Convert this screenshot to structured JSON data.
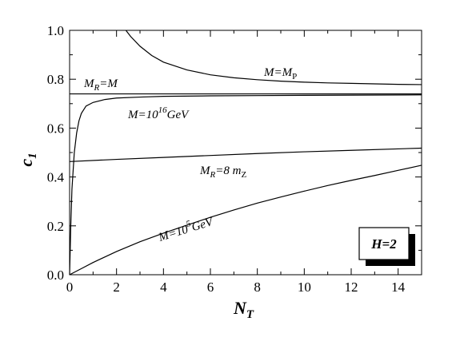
{
  "chart_data": {
    "type": "line",
    "title": "",
    "xlabel": "N",
    "xlabel_sub": "T",
    "ylabel": "c",
    "ylabel_sub": "1",
    "xlim": [
      0,
      15
    ],
    "ylim": [
      0,
      1.0
    ],
    "x_ticks": [
      0,
      2,
      4,
      6,
      8,
      10,
      12,
      14
    ],
    "x_tick_labels": [
      "0",
      "2",
      "4",
      "6",
      "8",
      "10",
      "12",
      "14"
    ],
    "y_ticks": [
      0,
      0.2,
      0.4,
      0.6,
      0.8,
      1.0
    ],
    "y_tick_labels": [
      "0.0",
      "0.2",
      "0.4",
      "0.6",
      "0.8",
      "1.0"
    ],
    "grid": false,
    "annotation_box": "H=2",
    "series": [
      {
        "label": "M=M",
        "label_sub": "P",
        "x": [
          2.4,
          2.6,
          3,
          3.5,
          4,
          5,
          6,
          7,
          8,
          9,
          10,
          11,
          12,
          13,
          14,
          15
        ],
        "y": [
          1.0,
          0.975,
          0.935,
          0.897,
          0.87,
          0.838,
          0.818,
          0.806,
          0.798,
          0.792,
          0.788,
          0.785,
          0.783,
          0.781,
          0.779,
          0.778
        ]
      },
      {
        "label": "M",
        "label_sub": "R",
        "label_tail": "=M",
        "x": [
          0,
          15
        ],
        "y": [
          0.74,
          0.74
        ]
      },
      {
        "label": "M=10",
        "label_sup": "16",
        "label_tail": "GeV",
        "x": [
          0,
          0.05,
          0.1,
          0.2,
          0.3,
          0.4,
          0.5,
          0.7,
          1.0,
          1.5,
          2,
          3,
          4,
          6,
          8,
          10,
          15
        ],
        "y": [
          0,
          0.2,
          0.35,
          0.5,
          0.58,
          0.63,
          0.66,
          0.69,
          0.705,
          0.717,
          0.723,
          0.727,
          0.73,
          0.732,
          0.733,
          0.734,
          0.736
        ]
      },
      {
        "label": "M",
        "label_sub": "R",
        "label_tail": "=8 m",
        "label_sub2": "Z",
        "x": [
          0,
          2,
          4,
          6,
          8,
          10,
          12,
          15
        ],
        "y": [
          0.463,
          0.472,
          0.48,
          0.488,
          0.496,
          0.503,
          0.509,
          0.518
        ]
      },
      {
        "label": "M=10",
        "label_sup": "5",
        "label_tail": "GeV",
        "x": [
          0,
          0.5,
          1,
          2,
          3,
          4,
          5,
          6,
          7,
          8,
          9,
          10,
          11,
          12,
          13,
          14,
          15
        ],
        "y": [
          0,
          0.025,
          0.05,
          0.095,
          0.135,
          0.17,
          0.203,
          0.235,
          0.265,
          0.293,
          0.318,
          0.342,
          0.365,
          0.386,
          0.406,
          0.427,
          0.448
        ]
      }
    ]
  }
}
